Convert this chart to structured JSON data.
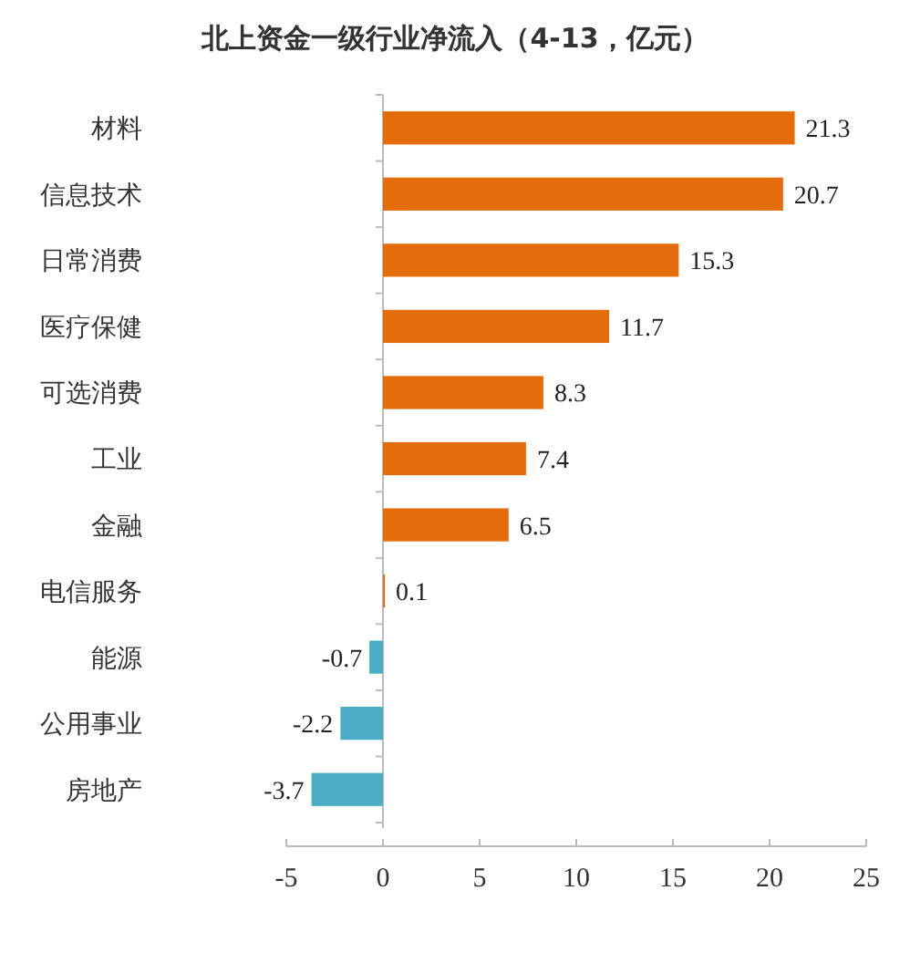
{
  "chart_data": {
    "type": "bar",
    "orientation": "horizontal",
    "title": "北上资金一级行业净流入（4-13，亿元）",
    "categories": [
      "材料",
      "信息技术",
      "日常消费",
      "医疗保健",
      "可选消费",
      "工业",
      "金融",
      "电信服务",
      "能源",
      "公用事业",
      "房地产"
    ],
    "values": [
      21.3,
      20.7,
      15.3,
      11.7,
      8.3,
      7.4,
      6.5,
      0.1,
      -0.7,
      -2.2,
      -3.7
    ],
    "colors": [
      "#e46c0a",
      "#e46c0a",
      "#e46c0a",
      "#e46c0a",
      "#e46c0a",
      "#e46c0a",
      "#e46c0a",
      "#e46c0a",
      "#4bacc6",
      "#4bacc6",
      "#4bacc6"
    ],
    "value_labels": [
      "21.3",
      "20.7",
      "15.3",
      "11.7",
      "8.3",
      "7.4",
      "6.5",
      "0.1",
      "-0.7",
      "-2.2",
      "-3.7"
    ],
    "xlim": [
      -5,
      25
    ],
    "xticks": [
      {
        "value": -5,
        "label": "-5"
      },
      0,
      5,
      10,
      15,
      20,
      25
    ]
  }
}
